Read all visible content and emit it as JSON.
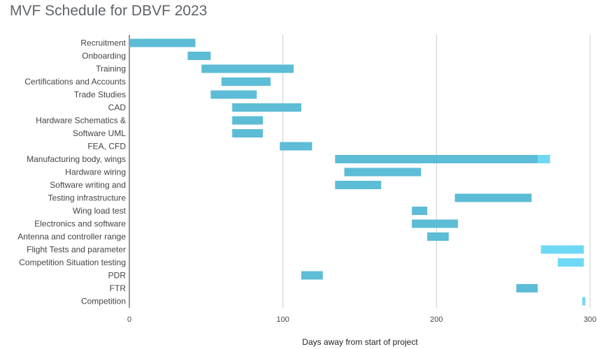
{
  "chart_data": {
    "type": "bar",
    "orientation": "horizontal-stacked",
    "title": "MVF Schedule for DBVF 2023",
    "xlabel": "Days away from start of project",
    "ylabel": "",
    "xlim": [
      0,
      300
    ],
    "xticks": [
      0,
      100,
      200,
      300
    ],
    "grid": true,
    "categories": [
      "Recruitment",
      "Onboarding",
      "Training",
      "Certifications and Accounts",
      "Trade Studies",
      "CAD",
      "Hardware Schematics &",
      "Software UML",
      "FEA, CFD",
      "Manufacturing body, wings",
      "Hardware wiring",
      "Software writing and",
      "Testing infrastructure",
      "Wing load test",
      "Electronics and software",
      "Antenna and controller range",
      "Flight Tests and parameter",
      "Competition Situation testing",
      "PDR",
      "FTR",
      "Competition"
    ],
    "series": [
      {
        "color": "#5dbcd6",
        "start": [
          0,
          38,
          47,
          60,
          53,
          67,
          67,
          67,
          98,
          134,
          140,
          134,
          212,
          184,
          184,
          194,
          268,
          279,
          112,
          252,
          295
        ],
        "duration": [
          43,
          15,
          60,
          32,
          30,
          45,
          20,
          20,
          21,
          132,
          50,
          30,
          50,
          10,
          30,
          14,
          0,
          0,
          14,
          14,
          0
        ]
      },
      {
        "color": "#6fd8f5",
        "start": [
          43,
          53,
          107,
          92,
          83,
          112,
          87,
          87,
          119,
          266,
          190,
          164,
          262,
          194,
          214,
          208,
          268,
          279,
          126,
          266,
          295
        ],
        "duration": [
          0,
          0,
          0,
          0,
          0,
          0,
          0,
          0,
          0,
          8,
          0,
          0,
          0,
          0,
          0,
          0,
          28,
          17,
          0,
          0,
          2
        ]
      }
    ]
  }
}
